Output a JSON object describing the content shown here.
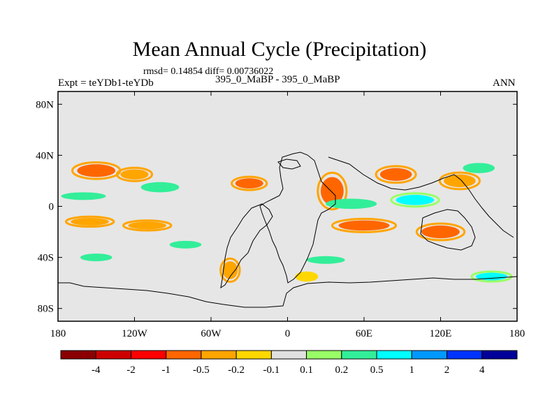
{
  "chart_data": {
    "type": "heatmap",
    "title": "Mean Annual Cycle (Precipitation)",
    "subtitle": "rmsd= 0.14854 diff= 0.00736022",
    "left_label": "Expt = teYDb1-teYDb",
    "center_label": "395_0_MaBP - 395_0_MaBP",
    "right_label": "ANN",
    "x_ticks": [
      "180",
      "120W",
      "60W",
      "0",
      "60E",
      "120E",
      "180"
    ],
    "x_tick_values": [
      -180,
      -120,
      -60,
      0,
      60,
      120,
      180
    ],
    "y_ticks": [
      "80N",
      "40N",
      "0",
      "40S",
      "80S"
    ],
    "y_tick_values": [
      80,
      40,
      0,
      -40,
      -80
    ],
    "xlim": [
      -180,
      180
    ],
    "ylim": [
      -90,
      90
    ],
    "colorbar": {
      "levels": [
        "-4",
        "-2",
        "-1",
        "-0.5",
        "-0.2",
        "-0.1",
        "0.1",
        "0.2",
        "0.5",
        "1",
        "2",
        "4"
      ],
      "colors": [
        "#8b0000",
        "#cd0000",
        "#ff0000",
        "#ff6600",
        "#ffa500",
        "#ffd700",
        "#e0e0e0",
        "#99ff66",
        "#33ee99",
        "#00ffff",
        "#0099ff",
        "#0033ff",
        "#000099"
      ]
    },
    "anomaly_regions": [
      {
        "lon": -150,
        "lat": 28,
        "w": 30,
        "h": 10,
        "value": -1
      },
      {
        "lon": -120,
        "lat": 25,
        "w": 22,
        "h": 8,
        "value": -0.5
      },
      {
        "lon": -155,
        "lat": -12,
        "w": 30,
        "h": 6,
        "value": -0.5
      },
      {
        "lon": -110,
        "lat": -15,
        "w": 30,
        "h": 6,
        "value": -0.5
      },
      {
        "lon": -30,
        "lat": 18,
        "w": 22,
        "h": 8,
        "value": -1
      },
      {
        "lon": 35,
        "lat": 12,
        "w": 18,
        "h": 22,
        "value": -1
      },
      {
        "lon": 85,
        "lat": 25,
        "w": 25,
        "h": 10,
        "value": -1
      },
      {
        "lon": 135,
        "lat": 20,
        "w": 25,
        "h": 10,
        "value": -0.5
      },
      {
        "lon": 60,
        "lat": -15,
        "w": 40,
        "h": 8,
        "value": -1
      },
      {
        "lon": 120,
        "lat": -20,
        "w": 30,
        "h": 10,
        "value": -1
      },
      {
        "lon": -45,
        "lat": -50,
        "w": 12,
        "h": 14,
        "value": -0.5
      },
      {
        "lon": 15,
        "lat": -55,
        "w": 18,
        "h": 8,
        "value": -0.2
      },
      {
        "lon": -160,
        "lat": 8,
        "w": 35,
        "h": 6,
        "value": 0.2
      },
      {
        "lon": -100,
        "lat": 15,
        "w": 30,
        "h": 8,
        "value": 0.2
      },
      {
        "lon": 50,
        "lat": 2,
        "w": 40,
        "h": 8,
        "value": 0.2
      },
      {
        "lon": 100,
        "lat": 5,
        "w": 30,
        "h": 8,
        "value": 0.5
      },
      {
        "lon": 150,
        "lat": 30,
        "w": 25,
        "h": 8,
        "value": 0.2
      },
      {
        "lon": -80,
        "lat": -30,
        "w": 25,
        "h": 6,
        "value": 0.2
      },
      {
        "lon": 30,
        "lat": -42,
        "w": 30,
        "h": 6,
        "value": 0.2
      },
      {
        "lon": 160,
        "lat": -55,
        "w": 25,
        "h": 6,
        "value": 0.5
      },
      {
        "lon": -150,
        "lat": -40,
        "w": 25,
        "h": 6,
        "value": 0.2
      }
    ]
  }
}
